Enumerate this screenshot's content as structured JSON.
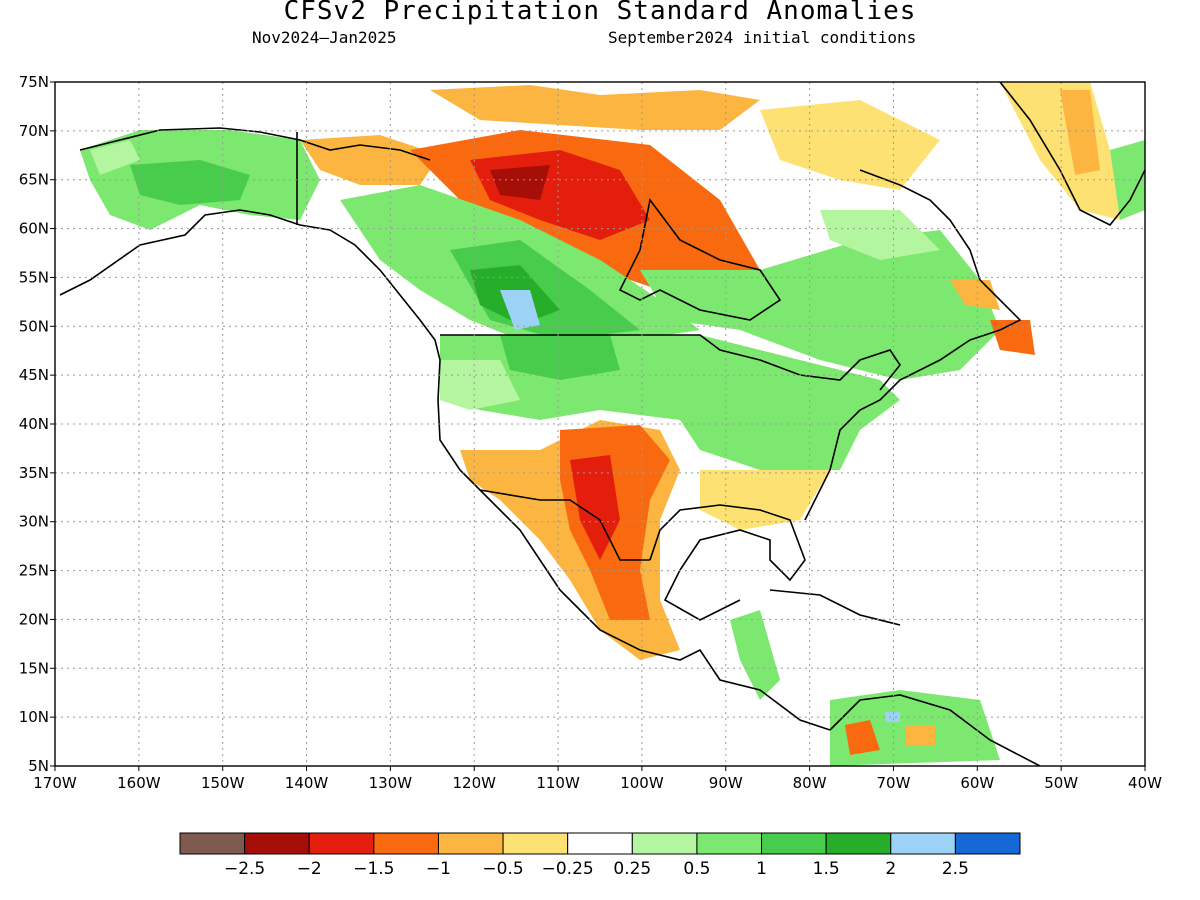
{
  "title": "CFSv2 Precipitation Standard Anomalies",
  "subtitle_left": "Nov2024–Jan2025",
  "subtitle_right": "September2024 initial conditions",
  "map": {
    "lon_range": [
      -170,
      -40
    ],
    "lat_range": [
      5,
      75
    ],
    "lon_ticks": [
      "170W",
      "160W",
      "150W",
      "140W",
      "130W",
      "120W",
      "110W",
      "100W",
      "90W",
      "80W",
      "70W",
      "60W",
      "50W",
      "40W"
    ],
    "lat_ticks": [
      "5N",
      "10N",
      "15N",
      "20N",
      "25N",
      "30N",
      "35N",
      "40N",
      "45N",
      "50N",
      "55N",
      "60N",
      "65N",
      "70N",
      "75N"
    ],
    "grid": "dotted"
  },
  "colorbar": {
    "colors": [
      "#7f5a4e",
      "#a50f08",
      "#e41e0c",
      "#f96a10",
      "#fbb540",
      "#fde273",
      "#ffffff",
      "#b4f5a0",
      "#7de86f",
      "#47cd4b",
      "#26ad2a",
      "#9bd2f5",
      "#1668d6"
    ],
    "labels": [
      "−2.5",
      "−2",
      "−1.5",
      "−1",
      "−0.5",
      "−0.25",
      "0.25",
      "0.5",
      "1",
      "1.5",
      "2",
      "2.5"
    ]
  }
}
